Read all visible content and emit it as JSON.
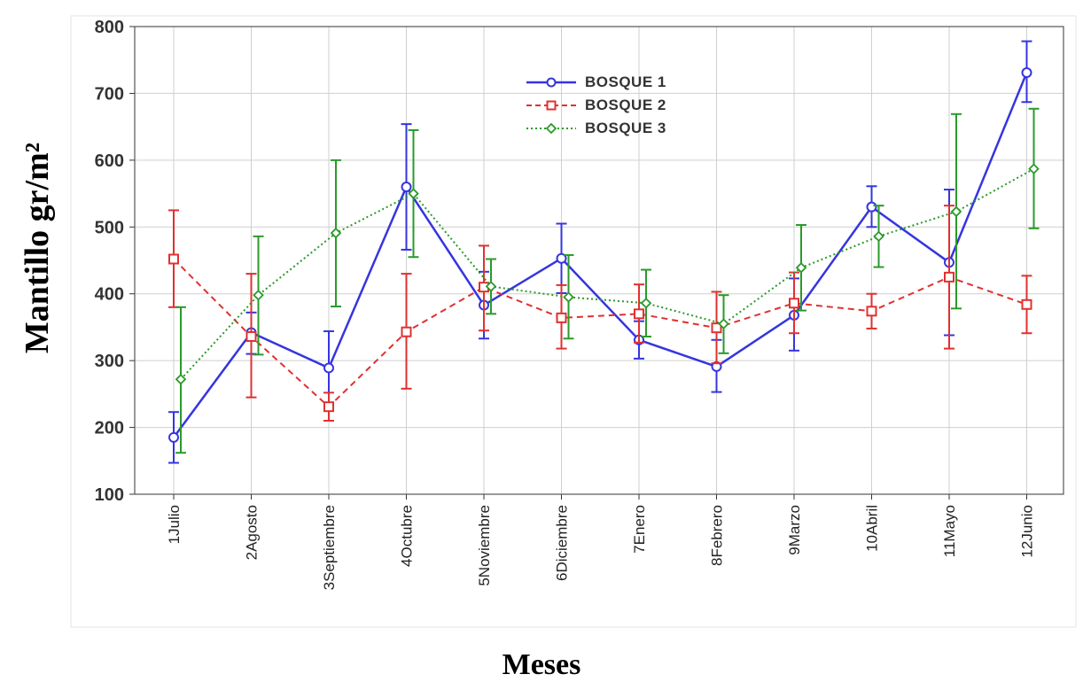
{
  "chart_data": {
    "type": "line",
    "xlabel": "Meses",
    "ylabel": "Mantillo gr/m²",
    "ylim": [
      100,
      800
    ],
    "yticks": [
      100,
      200,
      300,
      400,
      500,
      600,
      700,
      800
    ],
    "grid": true,
    "legend_position": "top-center",
    "categories": [
      "1Julio",
      "2Agosto",
      "3Septiembre",
      "4Octubre",
      "5Noviembre",
      "6Diciembre",
      "7Enero",
      "8Febrero",
      "9Marzo",
      "10Abril",
      "11Mayo",
      "12Junio"
    ],
    "series": [
      {
        "name": "BOSQUE 1",
        "color": "#3535e0",
        "style": "solid",
        "marker": "circle",
        "values": [
          185,
          342,
          289,
          560,
          383,
          453,
          331,
          291,
          368,
          530,
          447,
          731
        ],
        "err_low": [
          147,
          310,
          237,
          466,
          333,
          401,
          303,
          253,
          315,
          500,
          338,
          687
        ],
        "err_high": [
          223,
          372,
          344,
          654,
          433,
          505,
          359,
          331,
          423,
          561,
          556,
          778
        ]
      },
      {
        "name": "BOSQUE 2",
        "color": "#e03030",
        "style": "dashed",
        "marker": "square",
        "values": [
          452,
          336,
          231,
          343,
          410,
          364,
          370,
          349,
          386,
          374,
          425,
          384
        ],
        "err_low": [
          380,
          245,
          210,
          258,
          345,
          318,
          327,
          296,
          341,
          348,
          318,
          341
        ],
        "err_high": [
          525,
          430,
          252,
          430,
          472,
          413,
          414,
          403,
          432,
          400,
          532,
          427
        ]
      },
      {
        "name": "BOSQUE 3",
        "color": "#2a9a2a",
        "style": "dotted",
        "marker": "diamond",
        "values": [
          272,
          398,
          491,
          550,
          411,
          395,
          386,
          355,
          439,
          486,
          523,
          587
        ],
        "err_low": [
          162,
          309,
          381,
          455,
          370,
          333,
          336,
          311,
          375,
          440,
          378,
          498
        ],
        "err_high": [
          380,
          486,
          600,
          645,
          452,
          458,
          436,
          398,
          503,
          532,
          669,
          677
        ]
      }
    ]
  }
}
